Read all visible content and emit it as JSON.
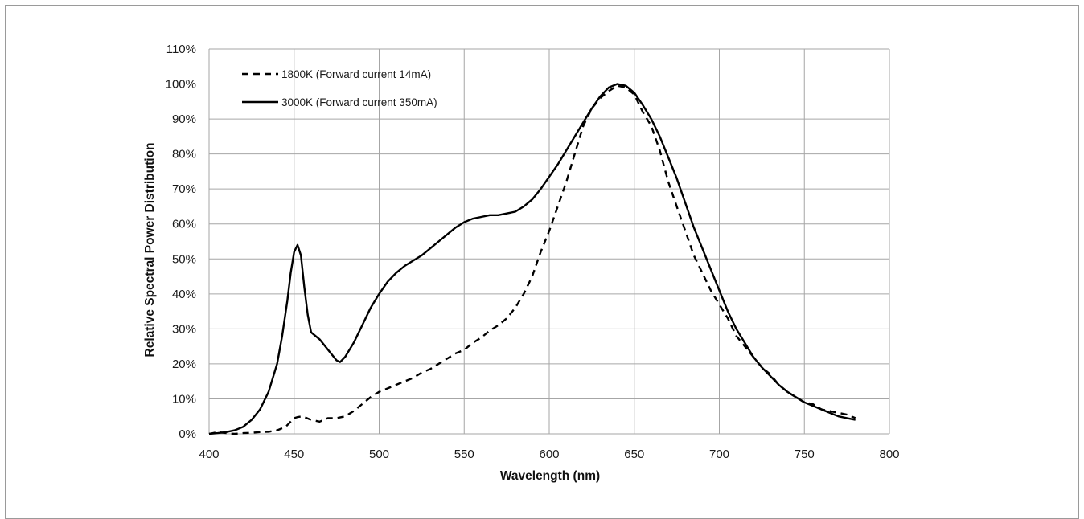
{
  "chart_data": {
    "type": "line",
    "title": "",
    "xlabel": "Wavelength (nm)",
    "ylabel": "Relative Spectral Power Distribution",
    "xlim": [
      400,
      800
    ],
    "ylim": [
      0,
      110
    ],
    "x_ticks": [
      "400",
      "450",
      "500",
      "550",
      "600",
      "650",
      "700",
      "750",
      "800"
    ],
    "y_ticks": [
      "0%",
      "10%",
      "20%",
      "30%",
      "40%",
      "50%",
      "60%",
      "70%",
      "80%",
      "90%",
      "100%",
      "110%"
    ],
    "grid": true,
    "legend_position": "top-left",
    "series": [
      {
        "name": "1800K (Forward current 14mA)",
        "style": "dashed",
        "color": "#000000",
        "x": [
          400,
          405,
          410,
          415,
          420,
          425,
          430,
          435,
          440,
          445,
          450,
          452,
          455,
          460,
          465,
          470,
          475,
          480,
          485,
          490,
          495,
          500,
          505,
          510,
          515,
          520,
          525,
          530,
          535,
          540,
          545,
          550,
          555,
          560,
          565,
          570,
          575,
          580,
          585,
          590,
          595,
          600,
          605,
          610,
          615,
          620,
          625,
          630,
          635,
          640,
          645,
          650,
          655,
          660,
          665,
          670,
          675,
          680,
          685,
          690,
          695,
          700,
          705,
          710,
          715,
          720,
          725,
          730,
          735,
          740,
          745,
          750,
          755,
          760,
          765,
          770,
          775,
          780
        ],
        "y": [
          0,
          0.5,
          0.2,
          0,
          0.2,
          0.3,
          0.5,
          0.6,
          1,
          2,
          4.5,
          4.8,
          5,
          4,
          3.5,
          4.5,
          4.5,
          5,
          6.5,
          8.5,
          10.5,
          12,
          13,
          14,
          15,
          16,
          17.5,
          18.5,
          20,
          21.5,
          23,
          24,
          26,
          27.5,
          29.5,
          31,
          33,
          36,
          40,
          45,
          52,
          58,
          65,
          72,
          80,
          88,
          93,
          96,
          98,
          99.5,
          99,
          97,
          92,
          88,
          81,
          72,
          65,
          58,
          51,
          46,
          41,
          37,
          33,
          28,
          25,
          22,
          19,
          17,
          14,
          12,
          10.5,
          9,
          8.5,
          7,
          6.5,
          6,
          5.5,
          4.5
        ]
      },
      {
        "name": "3000K (Forward current 350mA)",
        "style": "solid",
        "color": "#000000",
        "x": [
          400,
          405,
          410,
          415,
          420,
          425,
          430,
          435,
          440,
          443,
          446,
          448,
          450,
          452,
          454,
          456,
          458,
          460,
          465,
          470,
          475,
          477,
          480,
          485,
          490,
          495,
          500,
          505,
          510,
          515,
          520,
          525,
          530,
          535,
          540,
          545,
          550,
          555,
          560,
          565,
          570,
          575,
          580,
          585,
          590,
          595,
          600,
          605,
          610,
          615,
          620,
          625,
          630,
          635,
          640,
          645,
          650,
          655,
          660,
          665,
          670,
          675,
          680,
          685,
          690,
          695,
          700,
          705,
          710,
          715,
          720,
          725,
          730,
          735,
          740,
          745,
          750,
          755,
          760,
          765,
          770,
          775,
          780
        ],
        "y": [
          0,
          0.2,
          0.5,
          1,
          2,
          4,
          7,
          12,
          20,
          28,
          38,
          46,
          52,
          54,
          51,
          42,
          34,
          29,
          27,
          24,
          21,
          20.5,
          22,
          26,
          31,
          36,
          40,
          43.5,
          46,
          48,
          49.5,
          51,
          53,
          55,
          57,
          59,
          60.5,
          61.5,
          62,
          62.5,
          62.5,
          63,
          63.5,
          65,
          67,
          70,
          73.5,
          77,
          81,
          85,
          89,
          93,
          96.5,
          99,
          100,
          99.5,
          97.5,
          94,
          90,
          85,
          79,
          73,
          66,
          59,
          53,
          47,
          41,
          35,
          30,
          26,
          22,
          19,
          16.5,
          14,
          12,
          10.5,
          9,
          8,
          7,
          6,
          5,
          4.5,
          4
        ]
      }
    ]
  }
}
